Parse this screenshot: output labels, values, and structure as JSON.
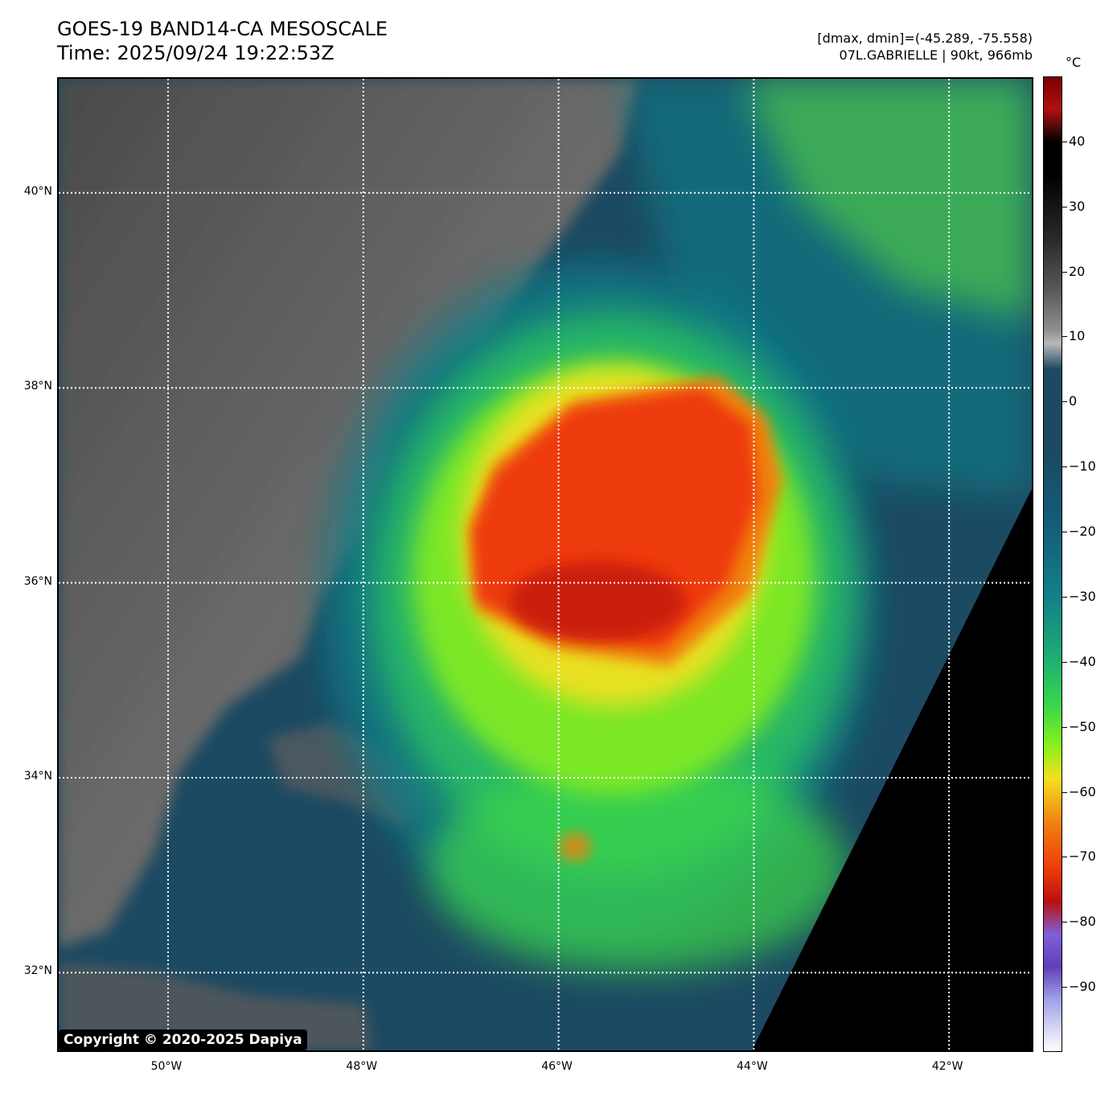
{
  "header": {
    "title_line1": "GOES-19 BAND14-CA MESOSCALE",
    "title_line2": "Time: 2025/09/24 19:22:53Z",
    "info_line1": "[dmax, dmin]=(-45.289, -75.558)",
    "info_line2": "07L.GABRIELLE | 90kt, 966mb"
  },
  "map": {
    "lat_labels": [
      "40°N",
      "38°N",
      "36°N",
      "34°N",
      "32°N"
    ],
    "lon_labels": [
      "50°W",
      "48°W",
      "46°W",
      "44°W",
      "42°W"
    ],
    "lat_values": [
      40,
      38,
      36,
      34,
      32
    ],
    "lon_values": [
      -50,
      -48,
      -46,
      -44,
      -42
    ],
    "lat_range": [
      31.17,
      41.17
    ],
    "lon_range": [
      -51.12,
      -41.12
    ],
    "gridlines": "dotted white",
    "no_data_region": "black wedge in lower-right corner",
    "copyright": "Copyright © 2020-2025 Dapiya"
  },
  "colorbar": {
    "unit": "°C",
    "range": [
      -100,
      50
    ],
    "tick_labels": [
      "40",
      "30",
      "20",
      "10",
      "0",
      "−10",
      "−20",
      "−30",
      "−40",
      "−50",
      "−60",
      "−70",
      "−80",
      "−90"
    ],
    "tick_values": [
      40,
      30,
      20,
      10,
      0,
      -10,
      -20,
      -30,
      -40,
      -50,
      -60,
      -70,
      -80,
      -90
    ],
    "colors": {
      "warm_gray": "#6e6e6e",
      "dark_blue": "#1c4a62",
      "teal": "#11808a",
      "green": "#3cd84a",
      "lime": "#8af01a",
      "yellow": "#f4e020",
      "orange": "#f08010",
      "red": "#ee3a0a",
      "dark_red": "#b81010",
      "purple": "#8060d8",
      "black": "#000000"
    }
  }
}
